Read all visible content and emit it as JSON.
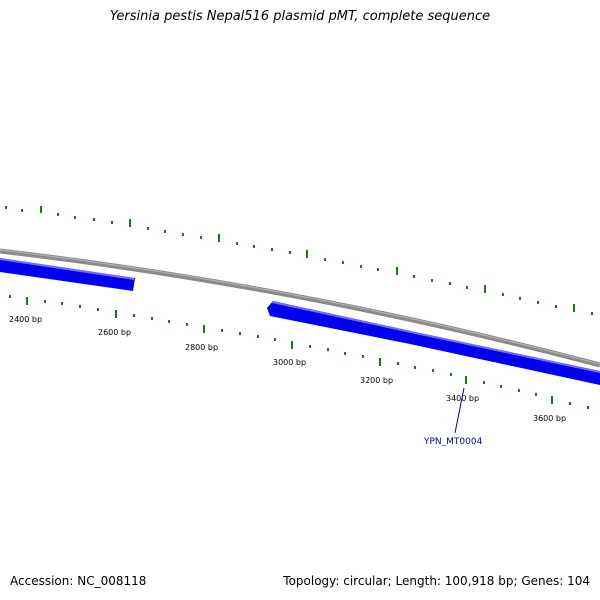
{
  "title": "Yersinia pestis Nepal516 plasmid pMT, complete sequence",
  "accession_text": "Accession: NC_008118",
  "summary_text": "Topology: circular; Length: 100,918 bp; Genes: 104",
  "tick_labels": [
    "2400 bp",
    "2600 bp",
    "2800 bp",
    "3000 bp",
    "3200 bp",
    "3400 bp",
    "3600 bp"
  ],
  "gene_label": "YPN_MT0004",
  "colors": {
    "backbone": "#8a8a8a",
    "gene": "#0000ee",
    "gene_highlight": "#6f6fff",
    "tick": "#1a7a1a",
    "gene_label": "#0000aa"
  }
}
